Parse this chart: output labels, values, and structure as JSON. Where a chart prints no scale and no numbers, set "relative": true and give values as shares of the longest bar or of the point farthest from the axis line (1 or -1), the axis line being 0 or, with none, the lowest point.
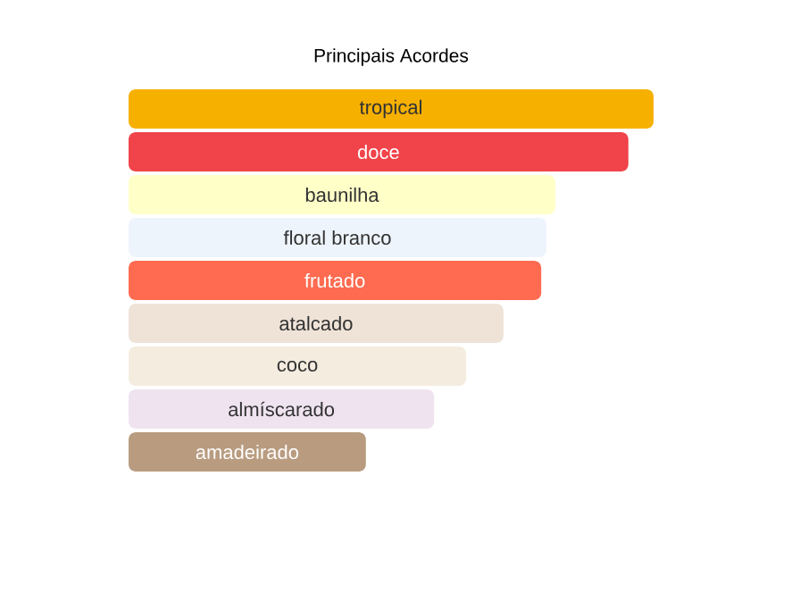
{
  "chart_data": {
    "type": "bar",
    "orientation": "horizontal",
    "relative": true,
    "title": "Principais Acordes",
    "categories": [
      "tropical",
      "doce",
      "baunilha",
      "floral branco",
      "frutado",
      "atalcado",
      "coco",
      "almíscarado",
      "amadeirado"
    ],
    "values": [
      1,
      0.952,
      0.813,
      0.796,
      0.786,
      0.714,
      0.643,
      0.582,
      0.452
    ],
    "colors": [
      "#f6b000",
      "#f0434a",
      "#ffffc8",
      "#eef4fc",
      "#fe6b50",
      "#efe3d8",
      "#f4ecdf",
      "#efe3f0",
      "#b99c80"
    ]
  }
}
